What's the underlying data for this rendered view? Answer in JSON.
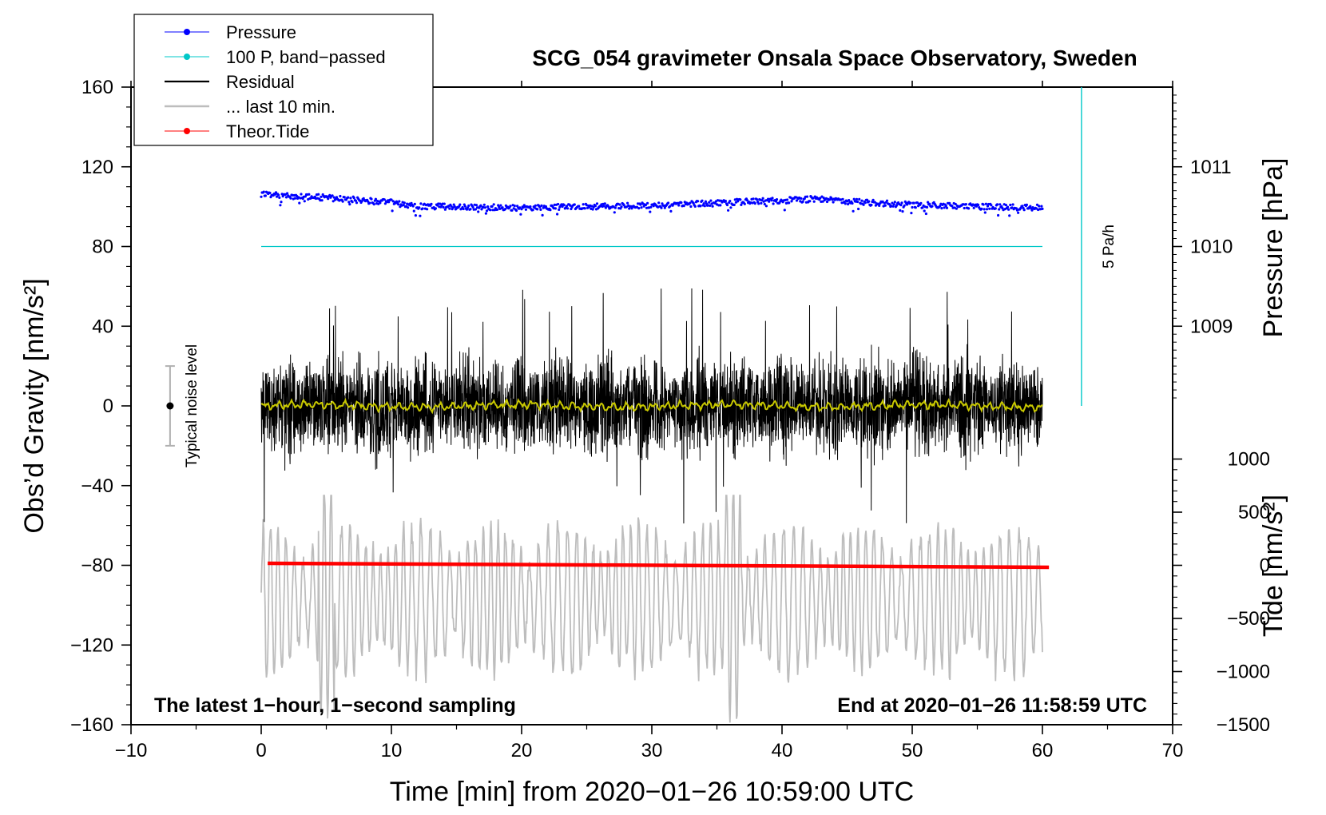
{
  "chart_data": {
    "type": "line",
    "title": "SCG_054 gravimeter Onsala Space Observatory, Sweden",
    "xlabel": "Time [min] from 2020−01−26 10:59:00 UTC",
    "ylabel_left": "Obs’d Gravity [nm/s²]",
    "ylabel_right_top": "Pressure [hPa]",
    "ylabel_right_bottom": "Tide [nm/s²]",
    "xlim": [
      -10,
      70
    ],
    "ylim_left": [
      -160,
      160
    ],
    "xticks": [
      -10,
      0,
      10,
      20,
      30,
      40,
      50,
      60,
      70
    ],
    "xtick_labels": [
      "−10",
      "0",
      "10",
      "20",
      "30",
      "40",
      "50",
      "60",
      "70"
    ],
    "yticks_left": [
      -160,
      -120,
      -80,
      -40,
      0,
      40,
      80,
      120,
      160
    ],
    "ytick_labels_left": [
      "−160",
      "−120",
      "−80",
      "−40",
      "0",
      "40",
      "80",
      "120",
      "160"
    ],
    "pressure_axis": {
      "ticks": [
        1009,
        1010,
        1011
      ],
      "tick_labels": [
        "1009",
        "1010",
        "1011"
      ],
      "gravity_at_1010": 80,
      "gravity_per_hPa": 40
    },
    "tide_axis": {
      "ticks": [
        -1500,
        -1000,
        -500,
        0,
        500,
        1000
      ],
      "tick_labels": [
        "−1500",
        "−1000",
        "−500",
        "0",
        "500",
        "1000"
      ],
      "gravity_at_0": -80,
      "gravity_per_unit": 0.05333
    },
    "legend": [
      {
        "label": "Pressure",
        "color": "#0000ff",
        "marker": true
      },
      {
        "label": "100 P, band−passed",
        "color": "#00c8c8",
        "marker": true
      },
      {
        "label": "Residual",
        "color": "#000000",
        "marker": false
      },
      {
        "label": "... last 10 min.",
        "color": "#bdbdbd",
        "marker": false
      },
      {
        "label": "Theor.Tide",
        "color": "#ff0000",
        "marker": true
      }
    ],
    "series": [
      {
        "name": "Pressure",
        "color": "#0000ff",
        "style": "dots",
        "x": [
          0,
          2,
          5,
          10,
          12,
          15,
          20,
          25,
          30,
          35,
          40,
          43,
          45,
          50,
          55,
          60
        ],
        "values": [
          106,
          105.5,
          104.5,
          102,
          100,
          100,
          99.5,
          100,
          100.5,
          102,
          103,
          104,
          102.5,
          101,
          100,
          99.5
        ],
        "noise": 1.5
      },
      {
        "name": "100 P, band−passed",
        "color": "#00c8c8",
        "style": "line",
        "x": [
          0,
          60
        ],
        "values": [
          80,
          80
        ]
      },
      {
        "name": "Residual",
        "color": "#000000",
        "style": "line",
        "x": [
          0,
          60
        ],
        "amplitude_range": [
          -60,
          62
        ]
      },
      {
        "name": "Residual, low-passed",
        "color": "#c8c800",
        "style": "line",
        "x": [
          0,
          60
        ],
        "amplitude_range": [
          -3,
          3
        ]
      },
      {
        "name": "... last 10 min.",
        "color": "#bdbdbd",
        "style": "line",
        "x": [
          0,
          60
        ],
        "amplitude_range": [
          -160,
          -45
        ]
      },
      {
        "name": "Theor.Tide",
        "color": "#ff0000",
        "style": "line",
        "x": [
          0.5,
          60.5
        ],
        "values": [
          -79,
          -81
        ]
      }
    ],
    "rate_scale": {
      "label": "5 Pa/h",
      "x": 63,
      "y_range": [
        0,
        160
      ]
    },
    "noise_bar": {
      "label": "Typical noise level",
      "x": -7,
      "y_center": 0,
      "half_height": 20
    },
    "footer_left": "The latest 1−hour, 1−second sampling",
    "footer_right": "End at 2020−01−26 11:58:59 UTC"
  }
}
